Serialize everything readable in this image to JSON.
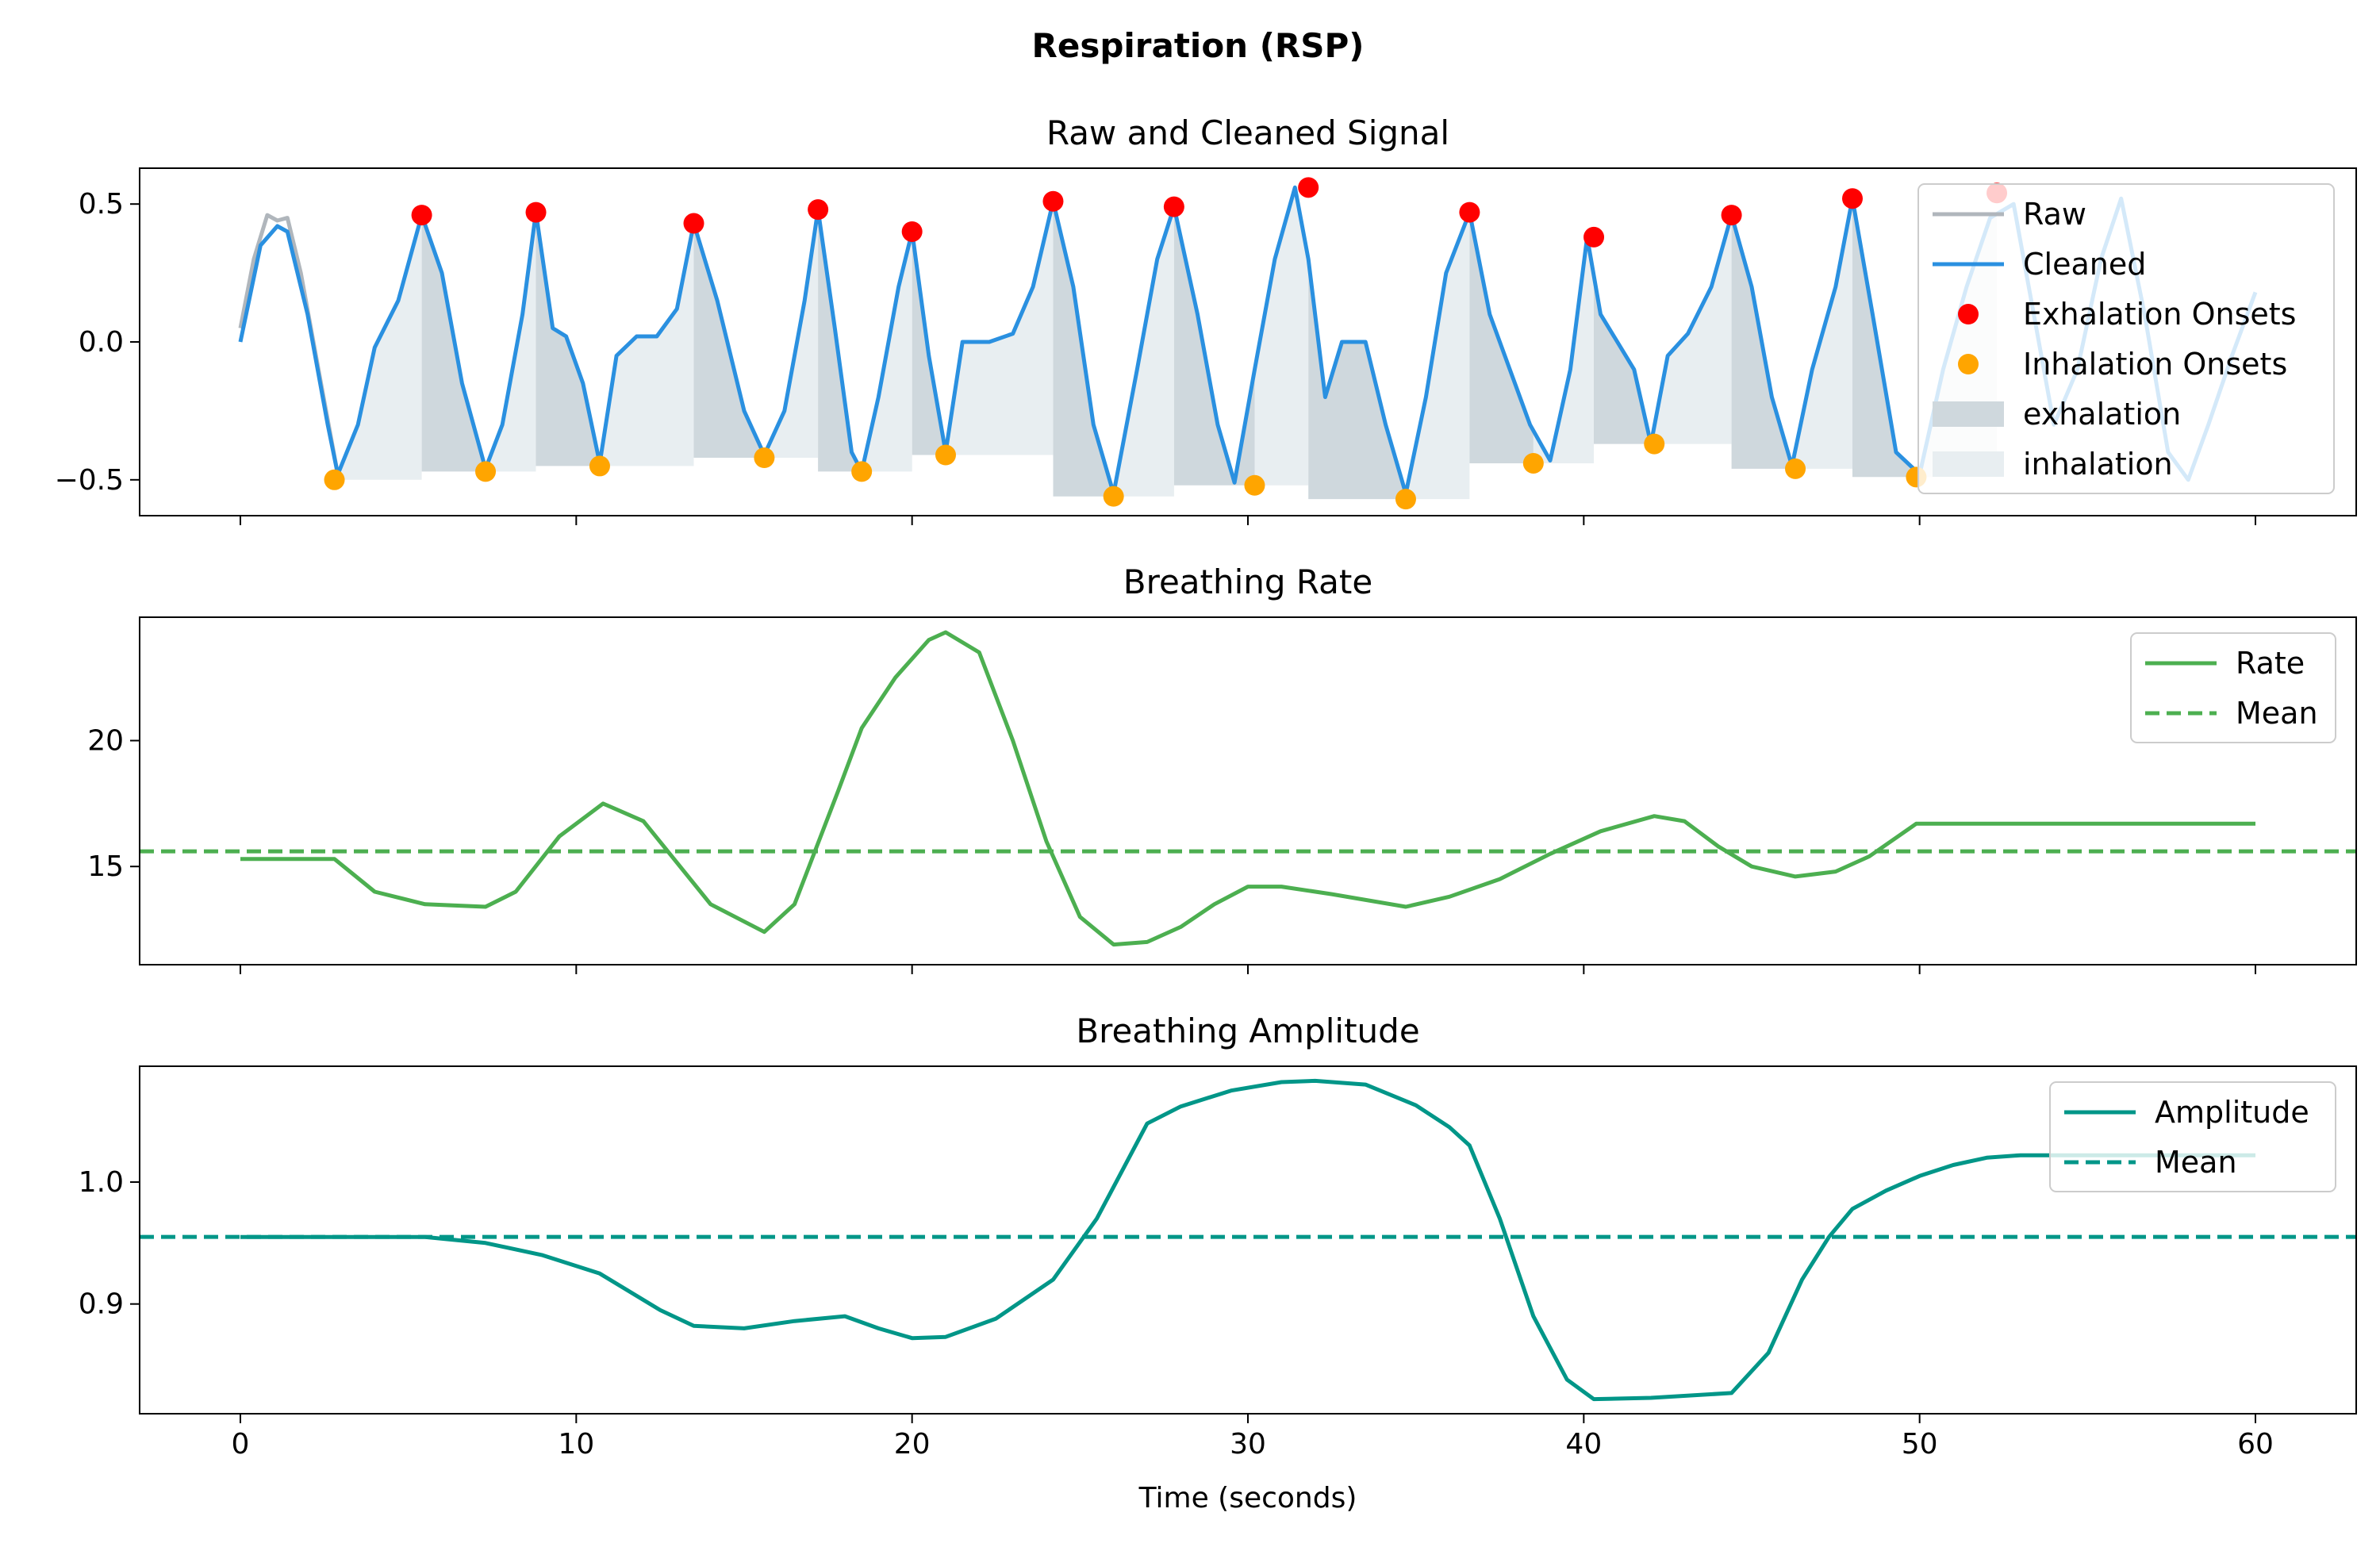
{
  "figure": {
    "title": "Respiration (RSP)"
  },
  "colors": {
    "raw": "#B0B6BC",
    "cleaned": "#2A90E0",
    "exhalation_onsets": "#FF0000",
    "inhalation_onsets": "#FFA500",
    "exhalation_fill": "#CFD8DD",
    "inhalation_fill": "#E8EEF1",
    "rate": "#4CAF50",
    "amplitude": "#009688"
  },
  "chart_data": [
    {
      "type": "line",
      "title": "Raw and Cleaned Signal",
      "xlabel": "",
      "ylabel": "",
      "xlim": [
        -3,
        63
      ],
      "ylim": [
        -0.63,
        0.63
      ],
      "yticks": [
        0.5,
        0.0,
        -0.5
      ],
      "ytick_labels": [
        "0.5",
        "0.0",
        "−0.5"
      ],
      "xticks": [
        0,
        10,
        20,
        30,
        40,
        50,
        60
      ],
      "grid": false,
      "legend_position": "top-right",
      "legend": [
        "Raw",
        "Cleaned",
        "Exhalation Onsets",
        "Inhalation Onsets",
        "exhalation",
        "inhalation"
      ],
      "series": [
        {
          "name": "Cleaned",
          "x": [
            0.0,
            0.6,
            1.1,
            1.4,
            2.0,
            2.6,
            2.9,
            3.5,
            4.0,
            4.7,
            5.4,
            6.0,
            6.6,
            7.3,
            7.8,
            8.4,
            8.8,
            9.3,
            9.7,
            10.2,
            10.7,
            11.2,
            11.8,
            12.4,
            13.0,
            13.5,
            14.2,
            15.0,
            15.6,
            16.2,
            16.8,
            17.2,
            17.7,
            18.2,
            18.5,
            19.0,
            19.6,
            20.0,
            20.5,
            21.0,
            21.5,
            22.3,
            23.0,
            23.6,
            24.2,
            24.8,
            25.4,
            26.0,
            26.7,
            27.3,
            27.8,
            28.5,
            29.1,
            29.6,
            30.2,
            30.8,
            31.4,
            31.8,
            32.3,
            32.8,
            33.5,
            34.1,
            34.7,
            35.3,
            35.9,
            36.6,
            37.2,
            37.8,
            38.4,
            39.0,
            39.6,
            40.1,
            40.5,
            41.0,
            41.5,
            42.0,
            42.5,
            43.1,
            43.8,
            44.4,
            45.0,
            45.6,
            46.2,
            46.8,
            47.5,
            48.0,
            48.6,
            49.3,
            50.0,
            50.7,
            51.4,
            52.1,
            52.8,
            53.4,
            54.0,
            54.7,
            55.4,
            56.0,
            56.7,
            57.4,
            58.0,
            58.6,
            59.3,
            60.0
          ],
          "values": [
            0.0,
            0.35,
            0.42,
            0.4,
            0.1,
            -0.3,
            -0.48,
            -0.3,
            -0.02,
            0.15,
            0.46,
            0.25,
            -0.15,
            -0.46,
            -0.3,
            0.1,
            0.47,
            0.05,
            0.02,
            -0.15,
            -0.44,
            -0.05,
            0.02,
            0.02,
            0.12,
            0.43,
            0.15,
            -0.25,
            -0.41,
            -0.25,
            0.15,
            0.48,
            0.05,
            -0.4,
            -0.47,
            -0.2,
            0.2,
            0.4,
            -0.05,
            -0.4,
            0.0,
            0.0,
            0.03,
            0.2,
            0.51,
            0.2,
            -0.3,
            -0.55,
            -0.1,
            0.3,
            0.49,
            0.1,
            -0.3,
            -0.51,
            -0.1,
            0.3,
            0.56,
            0.3,
            -0.2,
            0.0,
            0.0,
            -0.3,
            -0.55,
            -0.2,
            0.25,
            0.47,
            0.1,
            -0.1,
            -0.3,
            -0.43,
            -0.1,
            0.38,
            0.1,
            0.0,
            -0.1,
            -0.37,
            -0.05,
            0.03,
            0.2,
            0.46,
            0.2,
            -0.2,
            -0.45,
            -0.1,
            0.2,
            0.52,
            0.1,
            -0.4,
            -0.48,
            -0.1,
            0.2,
            0.45,
            0.5,
            0.1,
            -0.3,
            -0.1,
            0.3,
            0.52,
            0.1,
            -0.4,
            -0.5,
            -0.3,
            -0.05,
            0.18
          ]
        },
        {
          "name": "Raw",
          "x": [
            0.0,
            0.4,
            0.8,
            1.1,
            1.4,
            1.8,
            2.4,
            2.9
          ],
          "values": [
            0.05,
            0.3,
            0.46,
            0.44,
            0.45,
            0.25,
            -0.15,
            -0.48
          ]
        },
        {
          "name": "Exhalation Onsets",
          "x": [
            5.4,
            8.8,
            13.5,
            17.2,
            20.0,
            24.2,
            27.8,
            31.8,
            36.6,
            40.3,
            44.4,
            48.0,
            52.3
          ],
          "values": [
            0.46,
            0.47,
            0.43,
            0.48,
            0.4,
            0.51,
            0.49,
            0.56,
            0.47,
            0.38,
            0.46,
            0.52,
            0.54
          ]
        },
        {
          "name": "Inhalation Onsets",
          "x": [
            2.8,
            7.3,
            10.7,
            15.6,
            18.5,
            21.0,
            26.0,
            30.2,
            34.7,
            38.5,
            42.1,
            46.3,
            49.9
          ],
          "values": [
            -0.5,
            -0.47,
            -0.45,
            -0.42,
            -0.47,
            -0.41,
            -0.56,
            -0.52,
            -0.57,
            -0.44,
            -0.37,
            -0.46,
            -0.49
          ]
        }
      ]
    },
    {
      "type": "line",
      "title": "Breathing Rate",
      "xlabel": "",
      "ylabel": "",
      "xlim": [
        -3,
        63
      ],
      "ylim": [
        11.1,
        24.9
      ],
      "yticks": [
        20,
        15
      ],
      "ytick_labels": [
        "20",
        "15"
      ],
      "xticks": [
        0,
        10,
        20,
        30,
        40,
        50,
        60
      ],
      "grid": false,
      "legend_position": "top-right",
      "legend": [
        "Rate",
        "Mean"
      ],
      "mean": 15.6,
      "series": [
        {
          "name": "Rate",
          "x": [
            0,
            2.8,
            4.0,
            5.5,
            7.3,
            8.2,
            9.5,
            10.8,
            12.0,
            14.0,
            15.6,
            16.5,
            17.8,
            18.5,
            19.5,
            20.5,
            21.0,
            22.0,
            23.0,
            24.0,
            25.0,
            26.0,
            27.0,
            28.0,
            29.0,
            30.0,
            31.0,
            32.5,
            34.7,
            36.0,
            37.5,
            39.0,
            40.5,
            42.1,
            43.0,
            44.0,
            45.0,
            46.3,
            47.5,
            48.5,
            49.9,
            51.0,
            53.0,
            55.0,
            57.0,
            60.0
          ],
          "values": [
            15.3,
            15.3,
            14.0,
            13.5,
            13.4,
            14.0,
            16.2,
            17.5,
            16.8,
            13.5,
            12.4,
            13.5,
            18.0,
            20.5,
            22.5,
            24.0,
            24.3,
            23.5,
            20.0,
            16.0,
            13.0,
            11.9,
            12.0,
            12.6,
            13.5,
            14.2,
            14.2,
            13.9,
            13.4,
            13.8,
            14.5,
            15.5,
            16.4,
            17.0,
            16.8,
            15.8,
            15.0,
            14.6,
            14.8,
            15.4,
            16.7,
            16.7,
            16.7,
            16.7,
            16.7,
            16.7
          ]
        }
      ]
    },
    {
      "type": "line",
      "title": "Breathing Amplitude",
      "xlabel": "Time (seconds)",
      "ylabel": "",
      "xlim": [
        -3,
        63
      ],
      "ylim": [
        0.81,
        1.095
      ],
      "yticks": [
        1.0,
        0.9
      ],
      "ytick_labels": [
        "1.0",
        "0.9"
      ],
      "xticks": [
        0,
        10,
        20,
        30,
        40,
        50,
        60
      ],
      "xtick_labels": [
        "0",
        "10",
        "20",
        "30",
        "40",
        "50",
        "60"
      ],
      "grid": false,
      "legend_position": "top-right",
      "legend": [
        "Amplitude",
        "Mean"
      ],
      "mean": 0.955,
      "series": [
        {
          "name": "Amplitude",
          "x": [
            0,
            2.8,
            5.5,
            7.3,
            9.0,
            10.7,
            12.5,
            13.5,
            15.0,
            16.5,
            18.0,
            19.0,
            20.0,
            21.0,
            22.5,
            24.2,
            25.5,
            27.0,
            28.0,
            29.5,
            31.0,
            32.0,
            33.5,
            35.0,
            36.0,
            36.6,
            37.5,
            38.5,
            39.5,
            40.3,
            42.0,
            44.4,
            45.5,
            46.5,
            47.3,
            48.0,
            49.0,
            50.0,
            51.0,
            52.0,
            53.0,
            55.0,
            58.0,
            60.0
          ],
          "values": [
            0.955,
            0.955,
            0.955,
            0.95,
            0.94,
            0.925,
            0.895,
            0.882,
            0.88,
            0.886,
            0.89,
            0.88,
            0.872,
            0.873,
            0.888,
            0.92,
            0.97,
            1.048,
            1.062,
            1.075,
            1.082,
            1.083,
            1.08,
            1.063,
            1.045,
            1.03,
            0.97,
            0.89,
            0.838,
            0.822,
            0.823,
            0.827,
            0.86,
            0.92,
            0.955,
            0.978,
            0.993,
            1.005,
            1.014,
            1.02,
            1.022,
            1.022,
            1.022,
            1.022
          ]
        }
      ]
    }
  ]
}
